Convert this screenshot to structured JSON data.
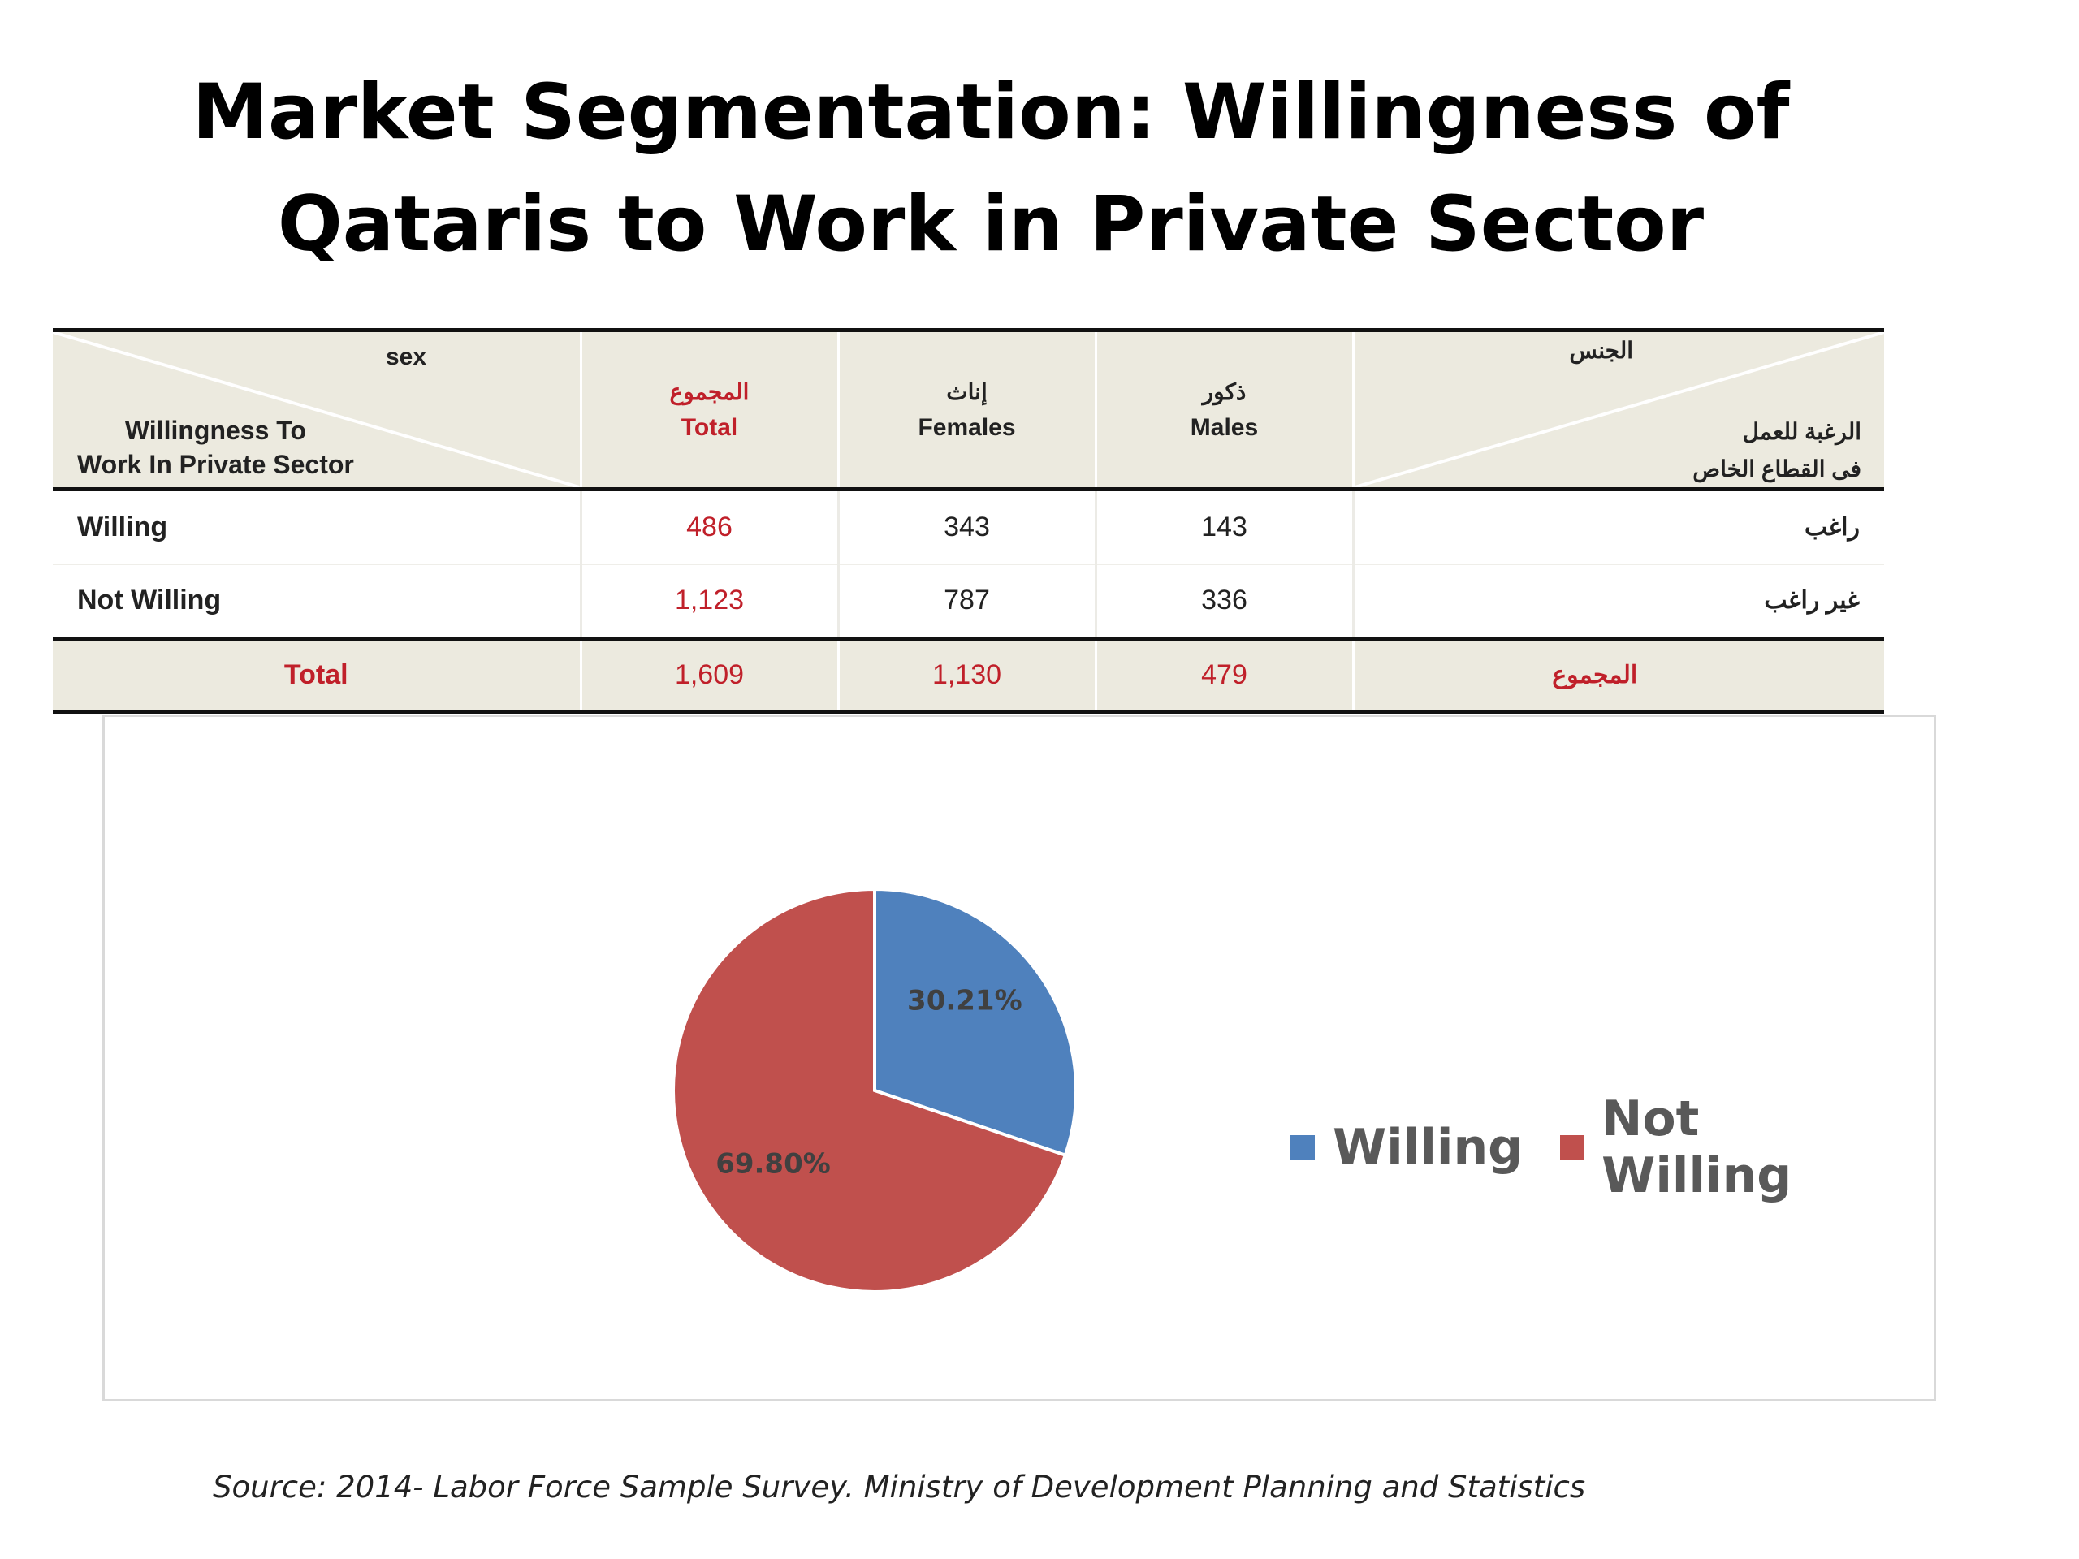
{
  "title": {
    "line1": "Market Segmentation: Willingness of",
    "line2": "Qataris to Work in Private Sector"
  },
  "table": {
    "header": {
      "corner_top": "sex",
      "corner_bottom_line1": "Willingness To",
      "corner_bottom_line2": "Work In Private Sector",
      "corner_ar_top": "الجنس",
      "corner_ar_line1": "الرغبة للعمل",
      "corner_ar_line2": "فى القطاع الخاص",
      "columns": [
        {
          "ar": "المجموع",
          "en": "Total"
        },
        {
          "ar": "إناث",
          "en": "Females"
        },
        {
          "ar": "ذكور",
          "en": "Males"
        }
      ]
    },
    "rows": [
      {
        "label": "Willing",
        "total": "486",
        "females": "343",
        "males": "143",
        "ar": "راغب"
      },
      {
        "label": "Not Willing",
        "total": "1,123",
        "females": "787",
        "males": "336",
        "ar": "غير راغب"
      }
    ],
    "total_row": {
      "label": "Total",
      "total": "1,609",
      "females": "1,130",
      "males": "479",
      "ar": "المجموع"
    }
  },
  "chart_data": {
    "type": "pie",
    "categories": [
      "Willing",
      "Not Willing"
    ],
    "values": [
      30.21,
      69.8
    ],
    "labels": [
      "30.21%",
      "69.80%"
    ],
    "colors": [
      "#4f81bd",
      "#c0504d"
    ],
    "legend_position": "right"
  },
  "source": "Source: 2014- Labor Force Sample Survey. Ministry of Development Planning and Statistics"
}
